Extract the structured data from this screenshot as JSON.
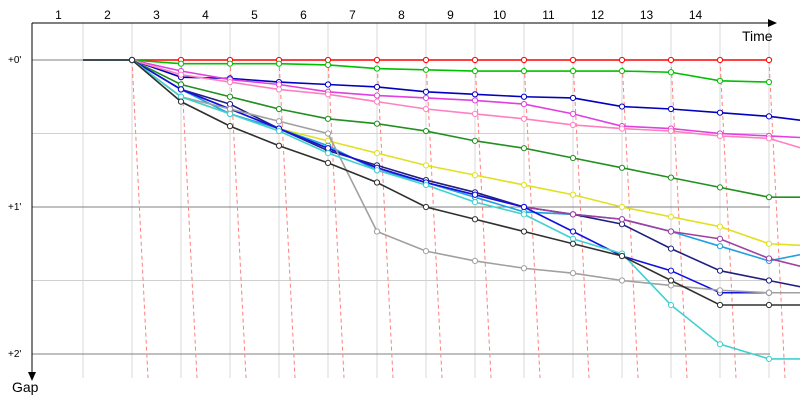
{
  "chart_data": {
    "type": "line",
    "title": "",
    "xlabel": "Time",
    "ylabel": "Gap",
    "x_ticks": [
      "1",
      "2",
      "3",
      "4",
      "5",
      "6",
      "7",
      "8",
      "9",
      "10",
      "11",
      "12",
      "13",
      "14"
    ],
    "y_ticks": [
      "+0'",
      "+1'",
      "+2'"
    ],
    "y_tick_values": [
      0,
      60,
      120
    ],
    "ylim": [
      0,
      120
    ],
    "y_unit": "seconds",
    "grid": true,
    "legend": "none",
    "pit_stop_lines": {
      "color": "#ff8080",
      "style": "dashed"
    },
    "series": [
      {
        "color": "#ff0000",
        "values": [
          0,
          0,
          0,
          0,
          0,
          0,
          0,
          0,
          0,
          0,
          0,
          0,
          0,
          0,
          0
        ]
      },
      {
        "color": "#00c000",
        "values": [
          0,
          0,
          1.5,
          1.5,
          1.5,
          2,
          3.5,
          4,
          4.5,
          4.5,
          4.5,
          4.5,
          5,
          8.5,
          9
        ]
      },
      {
        "color": "#0000c0",
        "values": [
          0,
          0,
          7,
          7.5,
          9,
          10,
          11,
          13,
          14,
          15,
          15.5,
          19,
          20,
          21.5,
          23,
          25.5
        ]
      },
      {
        "color": "#e040e0",
        "values": [
          0,
          0,
          4.5,
          8,
          10,
          13,
          14.5,
          15.5,
          16.5,
          18,
          22,
          27,
          28,
          30,
          31,
          32
        ]
      },
      {
        "color": "#ff80c0",
        "values": [
          0,
          0,
          6,
          9,
          12,
          14,
          17,
          20,
          22,
          24,
          26.5,
          28,
          29,
          31,
          32,
          38
        ]
      },
      {
        "color": "#209020",
        "values": [
          0,
          0,
          10,
          15,
          20,
          24,
          26,
          29,
          33,
          36,
          40,
          44,
          48,
          52,
          56,
          56
        ]
      },
      {
        "color": "#e0e020",
        "values": [
          0,
          0,
          15,
          22,
          28,
          33,
          38,
          43,
          47,
          51,
          55,
          60,
          64,
          68,
          75,
          76
        ]
      },
      {
        "color": "#20a0e0",
        "values": [
          0,
          0,
          12,
          22,
          28,
          35,
          45,
          50,
          56,
          62,
          63,
          65,
          70,
          76,
          82,
          78
        ]
      },
      {
        "color": "#202080",
        "values": [
          0,
          0,
          12,
          18,
          28,
          37,
          43,
          49,
          54,
          60,
          63,
          67,
          77,
          86,
          90,
          94
        ]
      },
      {
        "color": "#a040a0",
        "values": [
          0,
          0,
          12,
          20,
          28,
          36,
          44,
          50,
          55,
          60,
          63,
          65,
          70,
          73,
          81,
          86
        ]
      },
      {
        "color": "#1010e0",
        "values": [
          0,
          0,
          12,
          20,
          28,
          36,
          44,
          50,
          55,
          60,
          70,
          80,
          86,
          95,
          95,
          95
        ]
      },
      {
        "color": "#a0a0a0",
        "values": [
          0,
          0,
          15,
          20,
          25,
          30,
          70,
          78,
          82,
          85,
          87,
          90,
          92,
          94,
          95,
          95
        ]
      },
      {
        "color": "#40d0d0",
        "values": [
          0,
          0,
          15,
          22,
          29,
          38,
          45,
          51,
          58,
          63,
          73,
          79,
          100,
          116,
          122,
          122
        ]
      },
      {
        "color": "#303030",
        "values": [
          0,
          0,
          17,
          27,
          35,
          42,
          50,
          60,
          65,
          70,
          75,
          80,
          90,
          100,
          100,
          100
        ]
      }
    ]
  }
}
